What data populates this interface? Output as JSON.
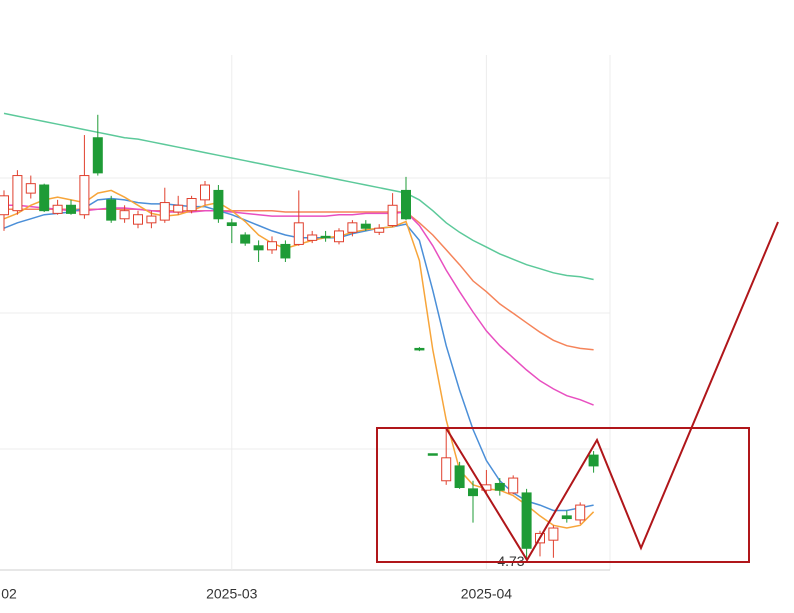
{
  "chart_data": {
    "type": "candlestick",
    "categories": [
      "02",
      null,
      null,
      null,
      null,
      null,
      null,
      null,
      null,
      null,
      null,
      null,
      null,
      null,
      null,
      null,
      null,
      "2025-03",
      null,
      null,
      null,
      null,
      null,
      null,
      null,
      null,
      null,
      null,
      null,
      null,
      null,
      null,
      null,
      null,
      null,
      null,
      "2025-04",
      null,
      null,
      null,
      null,
      null,
      null,
      null,
      null
    ],
    "open": [
      7.29,
      7.32,
      7.45,
      7.51,
      7.3,
      7.36,
      7.29,
      7.86,
      7.4,
      7.26,
      7.22,
      7.23,
      7.25,
      7.31,
      7.32,
      7.4,
      7.47,
      7.23,
      7.14,
      7.06,
      7.03,
      7.07,
      7.07,
      7.1,
      7.13,
      7.09,
      7.16,
      7.22,
      7.16,
      7.21,
      7.47,
      6.3,
      5.52,
      5.32,
      5.43,
      5.26,
      5.25,
      5.3,
      5.23,
      5.23,
      4.86,
      4.88,
      5.06,
      5.03,
      5.51
    ],
    "close": [
      7.43,
      7.58,
      7.52,
      7.32,
      7.36,
      7.3,
      7.58,
      7.6,
      7.25,
      7.32,
      7.29,
      7.28,
      7.38,
      7.36,
      7.41,
      7.51,
      7.26,
      7.21,
      7.08,
      7.03,
      7.09,
      6.97,
      7.23,
      7.14,
      7.12,
      7.17,
      7.23,
      7.19,
      7.19,
      7.36,
      7.26,
      6.29,
      5.51,
      5.49,
      5.27,
      5.21,
      5.29,
      5.25,
      5.34,
      4.82,
      4.93,
      4.97,
      5.04,
      5.14,
      5.43
    ],
    "high": [
      7.47,
      7.62,
      7.58,
      7.52,
      7.4,
      7.4,
      7.88,
      8.03,
      7.43,
      7.36,
      7.32,
      7.32,
      7.49,
      7.43,
      7.43,
      7.54,
      7.51,
      7.26,
      7.16,
      7.1,
      7.13,
      7.1,
      7.47,
      7.17,
      7.17,
      7.19,
      7.25,
      7.25,
      7.22,
      7.45,
      7.57,
      6.31,
      5.52,
      5.71,
      5.46,
      5.32,
      5.4,
      5.34,
      5.36,
      5.26,
      4.95,
      4.99,
      5.1,
      5.16,
      5.54
    ],
    "low": [
      7.17,
      7.29,
      7.41,
      7.31,
      7.29,
      7.29,
      7.26,
      7.58,
      7.23,
      7.23,
      7.19,
      7.19,
      7.23,
      7.29,
      7.3,
      7.36,
      7.23,
      7.08,
      7.06,
      6.94,
      7.0,
      6.94,
      7.06,
      7.08,
      7.09,
      7.07,
      7.13,
      7.17,
      7.14,
      7.2,
      7.25,
      6.28,
      5.51,
      5.29,
      5.26,
      5.01,
      5.23,
      5.21,
      5.22,
      4.73,
      4.76,
      4.75,
      5.01,
      5.0,
      5.38
    ],
    "up_color": "#e0402e",
    "down_color": "#1e9b36",
    "series": [
      {
        "color": "#5cc99a",
        "values": [
          8.04,
          8.02,
          8.0,
          7.98,
          7.96,
          7.94,
          7.92,
          7.9,
          7.88,
          7.86,
          7.85,
          7.83,
          7.81,
          7.79,
          7.77,
          7.75,
          7.73,
          7.71,
          7.69,
          7.67,
          7.65,
          7.63,
          7.61,
          7.59,
          7.57,
          7.55,
          7.53,
          7.51,
          7.49,
          7.47,
          7.45,
          7.4,
          7.32,
          7.23,
          7.16,
          7.1,
          7.05,
          7.0,
          6.96,
          6.92,
          6.89,
          6.86,
          6.84,
          6.83,
          6.81
        ]
      },
      {
        "color": "#f5845a",
        "values": [
          7.33,
          7.33,
          7.33,
          7.33,
          7.33,
          7.33,
          7.33,
          7.33,
          7.33,
          7.33,
          7.33,
          7.32,
          7.32,
          7.32,
          7.32,
          7.32,
          7.32,
          7.32,
          7.32,
          7.32,
          7.32,
          7.31,
          7.31,
          7.31,
          7.31,
          7.31,
          7.31,
          7.31,
          7.31,
          7.31,
          7.31,
          7.23,
          7.14,
          7.03,
          6.92,
          6.8,
          6.72,
          6.63,
          6.56,
          6.49,
          6.42,
          6.36,
          6.32,
          6.3,
          6.29
        ]
      },
      {
        "color": "#e84fc0",
        "values": [
          7.36,
          7.36,
          7.35,
          7.34,
          7.33,
          7.32,
          7.32,
          7.33,
          7.34,
          7.34,
          7.33,
          7.32,
          7.31,
          7.31,
          7.31,
          7.32,
          7.32,
          7.31,
          7.3,
          7.29,
          7.28,
          7.28,
          7.28,
          7.28,
          7.28,
          7.29,
          7.29,
          7.3,
          7.3,
          7.3,
          7.31,
          7.21,
          7.06,
          6.88,
          6.72,
          6.57,
          6.43,
          6.32,
          6.23,
          6.14,
          6.06,
          6.0,
          5.95,
          5.92,
          5.88
        ]
      },
      {
        "color": "#4b8fd8",
        "values": [
          7.19,
          7.23,
          7.26,
          7.29,
          7.3,
          7.31,
          7.34,
          7.4,
          7.41,
          7.4,
          7.38,
          7.37,
          7.37,
          7.36,
          7.35,
          7.35,
          7.32,
          7.29,
          7.25,
          7.21,
          7.17,
          7.14,
          7.12,
          7.12,
          7.12,
          7.12,
          7.15,
          7.17,
          7.19,
          7.2,
          7.22,
          7.1,
          6.73,
          6.32,
          5.99,
          5.7,
          5.47,
          5.32,
          5.23,
          5.17,
          5.14,
          5.1,
          5.1,
          5.12,
          5.14
        ]
      },
      {
        "color": "#f7a53a",
        "values": [
          7.26,
          7.3,
          7.36,
          7.4,
          7.42,
          7.4,
          7.38,
          7.45,
          7.47,
          7.42,
          7.36,
          7.3,
          7.28,
          7.29,
          7.32,
          7.36,
          7.38,
          7.32,
          7.24,
          7.14,
          7.08,
          7.04,
          7.07,
          7.1,
          7.12,
          7.13,
          7.16,
          7.18,
          7.19,
          7.2,
          7.24,
          6.95,
          6.29,
          5.77,
          5.4,
          5.29,
          5.26,
          5.25,
          5.21,
          5.14,
          5.06,
          4.99,
          4.97,
          4.99,
          5.09
        ]
      }
    ],
    "ylim": [
      4.6,
      8.88
    ]
  }
}
